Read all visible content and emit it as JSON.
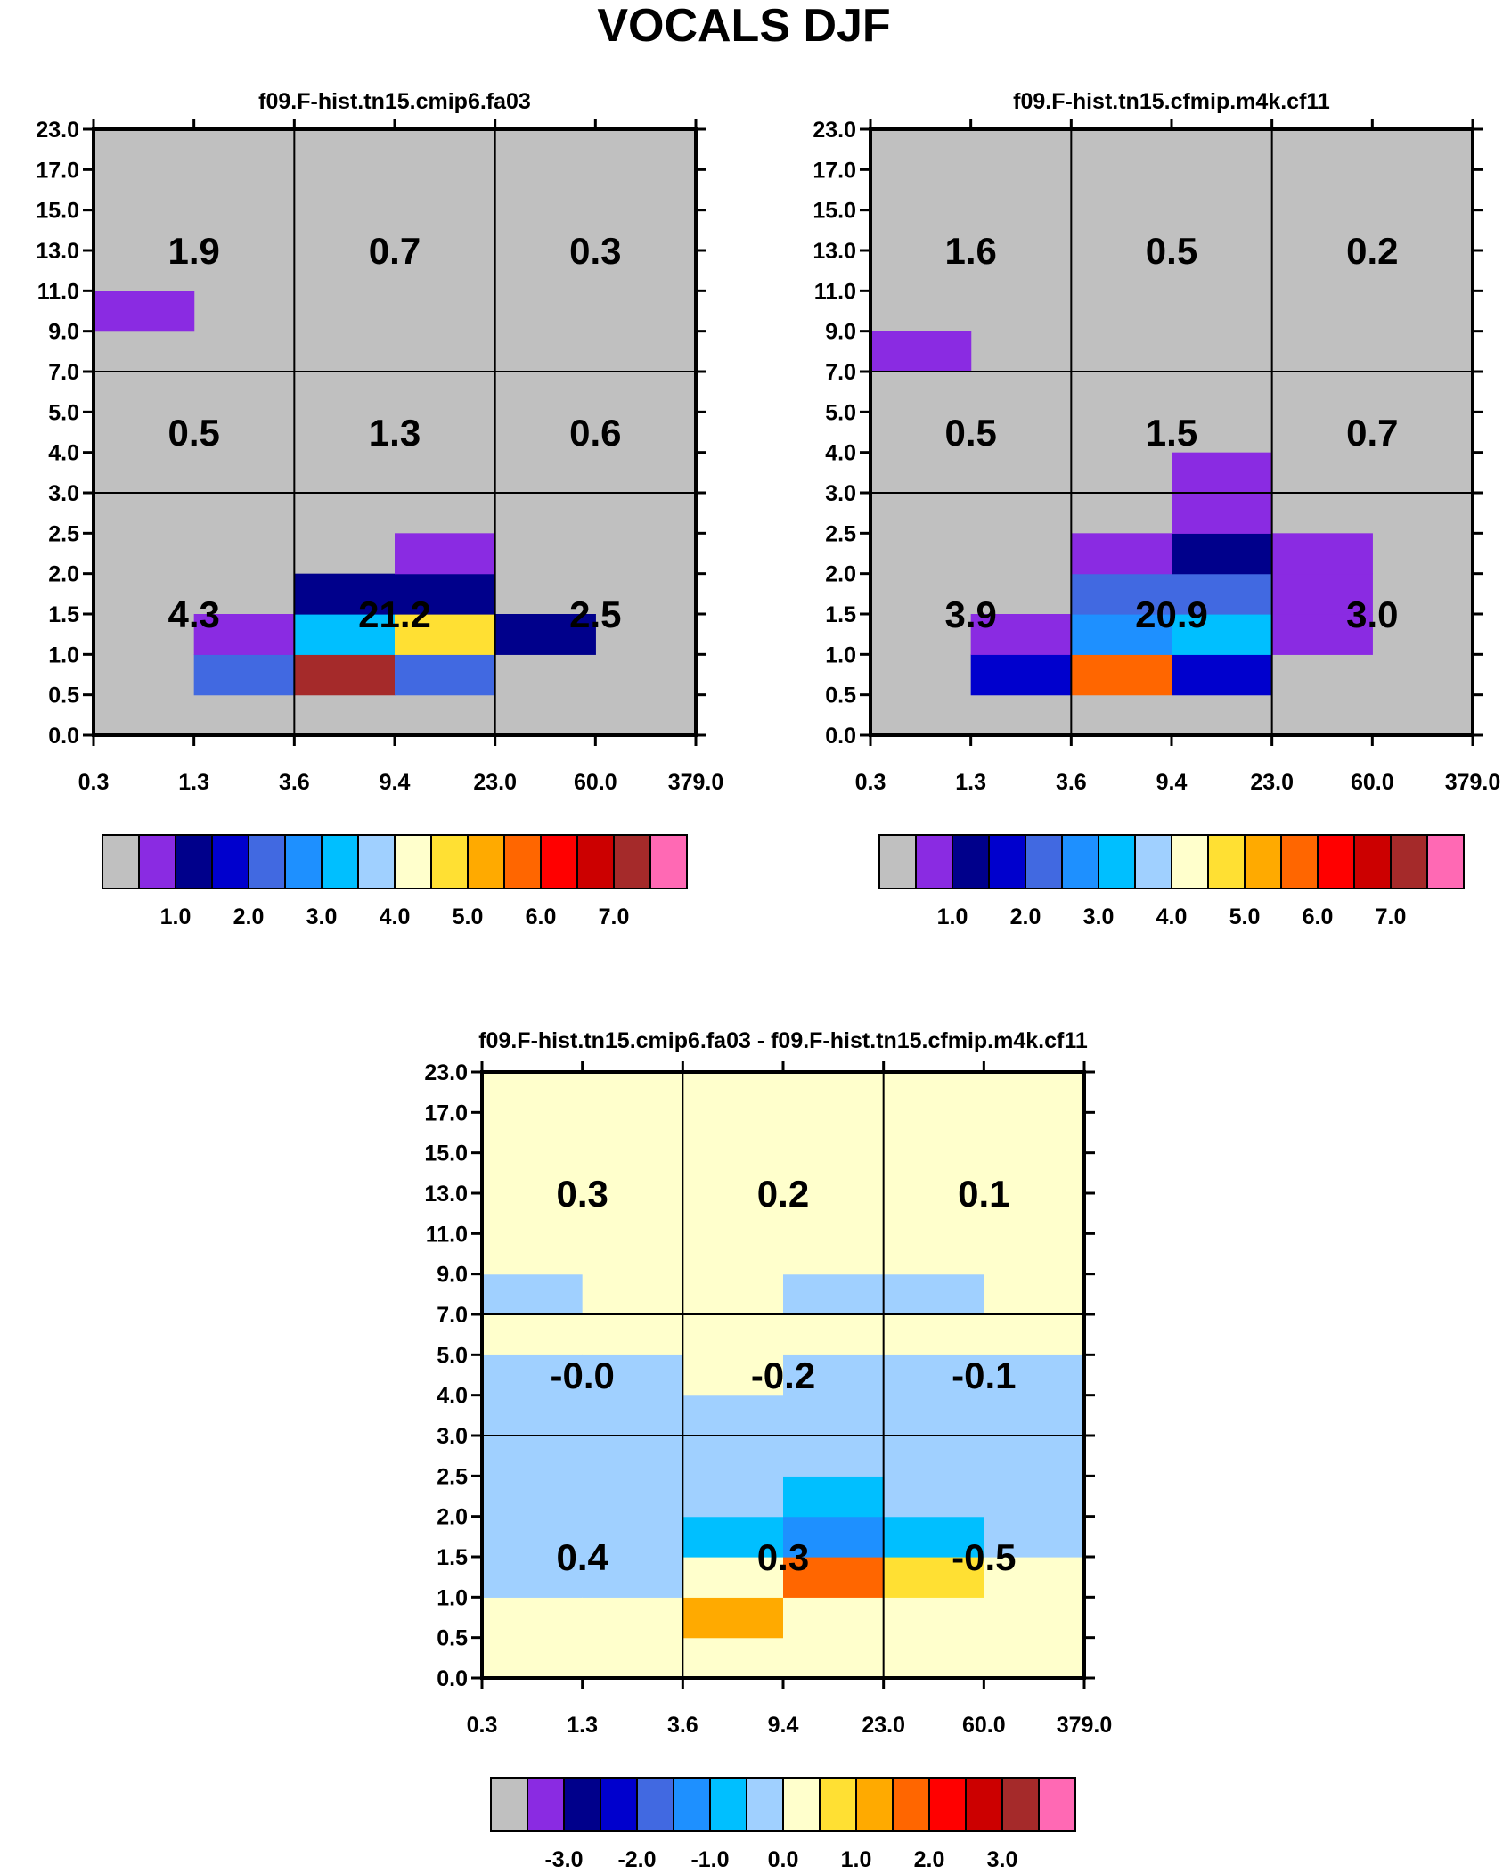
{
  "title": "VOCALS DJF",
  "chart_data": [
    {
      "type": "heatmap",
      "title": "f09.F-hist.tn15.cmip6.fa03",
      "x_ticks": [
        "0.3",
        "1.3",
        "3.6",
        "9.4",
        "23.0",
        "60.0",
        "379.0"
      ],
      "y_ticks": [
        "0.0",
        "0.5",
        "1.0",
        "1.5",
        "2.0",
        "2.5",
        "3.0",
        "4.0",
        "5.0",
        "7.0",
        "9.0",
        "11.0",
        "13.0",
        "15.0",
        "17.0",
        "23.0"
      ],
      "grid_lines": {
        "x": [
          2,
          4
        ],
        "y": [
          6,
          9
        ]
      },
      "region_values": [
        [
          "4.3",
          "21.2",
          "2.5"
        ],
        [
          "0.5",
          "1.3",
          "0.6"
        ],
        [
          "1.9",
          "0.7",
          "0.3"
        ]
      ],
      "colorbar": {
        "colors": [
          "#c0c0c0",
          "#8a2be2",
          "#00008b",
          "#0000cd",
          "#4169e1",
          "#1e90ff",
          "#00bfff",
          "#a0d0ff",
          "#ffffcc",
          "#ffe033",
          "#ffaa00",
          "#ff6600",
          "#ff0000",
          "#cc0000",
          "#a52a2a",
          "#ff69b4"
        ],
        "labels": [
          "1.0",
          "2.0",
          "3.0",
          "4.0",
          "5.0",
          "6.0",
          "7.0"
        ],
        "label_boxes": [
          2,
          4,
          6,
          8,
          10,
          12,
          14
        ]
      },
      "cells": [
        {
          "x": 0,
          "y": 10,
          "color": 1
        },
        {
          "x": 1,
          "y": 1,
          "color": 4
        },
        {
          "x": 1,
          "y": 2,
          "color": 1
        },
        {
          "x": 2,
          "y": 1,
          "color": 14
        },
        {
          "x": 2,
          "y": 2,
          "color": 6
        },
        {
          "x": 2,
          "y": 3,
          "color": 2
        },
        {
          "x": 3,
          "y": 1,
          "color": 4
        },
        {
          "x": 3,
          "y": 2,
          "color": 9
        },
        {
          "x": 3,
          "y": 3,
          "color": 2
        },
        {
          "x": 3,
          "y": 4,
          "color": 1
        },
        {
          "x": 4,
          "y": 2,
          "color": 2
        }
      ]
    },
    {
      "type": "heatmap",
      "title": "f09.F-hist.tn15.cfmip.m4k.cf11",
      "x_ticks": [
        "0.3",
        "1.3",
        "3.6",
        "9.4",
        "23.0",
        "60.0",
        "379.0"
      ],
      "y_ticks": [
        "0.0",
        "0.5",
        "1.0",
        "1.5",
        "2.0",
        "2.5",
        "3.0",
        "4.0",
        "5.0",
        "7.0",
        "9.0",
        "11.0",
        "13.0",
        "15.0",
        "17.0",
        "23.0"
      ],
      "grid_lines": {
        "x": [
          2,
          4
        ],
        "y": [
          6,
          9
        ]
      },
      "region_values": [
        [
          "3.9",
          "20.9",
          "3.0"
        ],
        [
          "0.5",
          "1.5",
          "0.7"
        ],
        [
          "1.6",
          "0.5",
          "0.2"
        ]
      ],
      "colorbar": {
        "colors": [
          "#c0c0c0",
          "#8a2be2",
          "#00008b",
          "#0000cd",
          "#4169e1",
          "#1e90ff",
          "#00bfff",
          "#a0d0ff",
          "#ffffcc",
          "#ffe033",
          "#ffaa00",
          "#ff6600",
          "#ff0000",
          "#cc0000",
          "#a52a2a",
          "#ff69b4"
        ],
        "labels": [
          "1.0",
          "2.0",
          "3.0",
          "4.0",
          "5.0",
          "6.0",
          "7.0"
        ],
        "label_boxes": [
          2,
          4,
          6,
          8,
          10,
          12,
          14
        ]
      },
      "cells": [
        {
          "x": 0,
          "y": 9,
          "color": 1
        },
        {
          "x": 1,
          "y": 1,
          "color": 3
        },
        {
          "x": 1,
          "y": 2,
          "color": 1
        },
        {
          "x": 2,
          "y": 1,
          "color": 11
        },
        {
          "x": 2,
          "y": 2,
          "color": 5
        },
        {
          "x": 2,
          "y": 3,
          "color": 4
        },
        {
          "x": 2,
          "y": 4,
          "color": 1
        },
        {
          "x": 3,
          "y": 1,
          "color": 3
        },
        {
          "x": 3,
          "y": 2,
          "color": 6
        },
        {
          "x": 3,
          "y": 3,
          "color": 4
        },
        {
          "x": 3,
          "y": 4,
          "color": 2
        },
        {
          "x": 3,
          "y": 5,
          "color": 1
        },
        {
          "x": 3,
          "y": 6,
          "color": 1
        },
        {
          "x": 4,
          "y": 2,
          "color": 1
        },
        {
          "x": 4,
          "y": 3,
          "color": 1
        },
        {
          "x": 4,
          "y": 4,
          "color": 1
        }
      ]
    },
    {
      "type": "heatmap",
      "title": "f09.F-hist.tn15.cmip6.fa03 - f09.F-hist.tn15.cfmip.m4k.cf11",
      "x_ticks": [
        "0.3",
        "1.3",
        "3.6",
        "9.4",
        "23.0",
        "60.0",
        "379.0"
      ],
      "y_ticks": [
        "0.0",
        "0.5",
        "1.0",
        "1.5",
        "2.0",
        "2.5",
        "3.0",
        "4.0",
        "5.0",
        "7.0",
        "9.0",
        "11.0",
        "13.0",
        "15.0",
        "17.0",
        "23.0"
      ],
      "grid_lines": {
        "x": [
          2,
          4
        ],
        "y": [
          6,
          9
        ]
      },
      "region_values": [
        [
          "0.4",
          "0.3",
          "-0.5"
        ],
        [
          "-0.0",
          "-0.2",
          "-0.1"
        ],
        [
          "0.3",
          "0.2",
          "0.1"
        ]
      ],
      "colorbar": {
        "colors": [
          "#c0c0c0",
          "#8a2be2",
          "#00008b",
          "#0000cd",
          "#4169e1",
          "#1e90ff",
          "#00bfff",
          "#a0d0ff",
          "#ffffcc",
          "#ffe033",
          "#ffaa00",
          "#ff6600",
          "#ff0000",
          "#cc0000",
          "#a52a2a",
          "#ff69b4"
        ],
        "labels": [
          "-3.0",
          "-2.0",
          "-1.0",
          "0.0",
          "1.0",
          "2.0",
          "3.0"
        ],
        "label_boxes": [
          2,
          4,
          6,
          8,
          10,
          12,
          14
        ]
      },
      "cells": [
        {
          "x": 0,
          "y": 0,
          "color": 8
        },
        {
          "x": 0,
          "y": 1,
          "color": 8
        },
        {
          "x": 0,
          "y": 2,
          "color": 7
        },
        {
          "x": 0,
          "y": 3,
          "color": 7
        },
        {
          "x": 0,
          "y": 4,
          "color": 7
        },
        {
          "x": 0,
          "y": 5,
          "color": 7
        },
        {
          "x": 0,
          "y": 6,
          "color": 7
        },
        {
          "x": 0,
          "y": 7,
          "color": 7
        },
        {
          "x": 0,
          "y": 8,
          "color": 8
        },
        {
          "x": 0,
          "y": 9,
          "color": 7
        },
        {
          "x": 0,
          "y": 10,
          "color": 8
        },
        {
          "x": 0,
          "y": 11,
          "color": 8
        },
        {
          "x": 0,
          "y": 12,
          "color": 8
        },
        {
          "x": 0,
          "y": 13,
          "color": 8
        },
        {
          "x": 0,
          "y": 14,
          "color": 8
        },
        {
          "x": 1,
          "y": 0,
          "color": 8
        },
        {
          "x": 1,
          "y": 1,
          "color": 8
        },
        {
          "x": 1,
          "y": 2,
          "color": 7
        },
        {
          "x": 1,
          "y": 3,
          "color": 7
        },
        {
          "x": 1,
          "y": 4,
          "color": 7
        },
        {
          "x": 1,
          "y": 5,
          "color": 7
        },
        {
          "x": 1,
          "y": 6,
          "color": 7
        },
        {
          "x": 1,
          "y": 7,
          "color": 7
        },
        {
          "x": 1,
          "y": 8,
          "color": 8
        },
        {
          "x": 1,
          "y": 9,
          "color": 8
        },
        {
          "x": 1,
          "y": 10,
          "color": 8
        },
        {
          "x": 1,
          "y": 11,
          "color": 8
        },
        {
          "x": 1,
          "y": 12,
          "color": 8
        },
        {
          "x": 1,
          "y": 13,
          "color": 8
        },
        {
          "x": 1,
          "y": 14,
          "color": 8
        },
        {
          "x": 2,
          "y": 0,
          "color": 8
        },
        {
          "x": 2,
          "y": 1,
          "color": 10
        },
        {
          "x": 2,
          "y": 2,
          "color": 8
        },
        {
          "x": 2,
          "y": 3,
          "color": 6
        },
        {
          "x": 2,
          "y": 4,
          "color": 7
        },
        {
          "x": 2,
          "y": 5,
          "color": 7
        },
        {
          "x": 2,
          "y": 6,
          "color": 7
        },
        {
          "x": 2,
          "y": 7,
          "color": 8
        },
        {
          "x": 2,
          "y": 8,
          "color": 8
        },
        {
          "x": 2,
          "y": 9,
          "color": 8
        },
        {
          "x": 2,
          "y": 10,
          "color": 8
        },
        {
          "x": 2,
          "y": 11,
          "color": 8
        },
        {
          "x": 2,
          "y": 12,
          "color": 8
        },
        {
          "x": 2,
          "y": 13,
          "color": 8
        },
        {
          "x": 2,
          "y": 14,
          "color": 8
        },
        {
          "x": 3,
          "y": 0,
          "color": 8
        },
        {
          "x": 3,
          "y": 1,
          "color": 8
        },
        {
          "x": 3,
          "y": 2,
          "color": 11
        },
        {
          "x": 3,
          "y": 3,
          "color": 5
        },
        {
          "x": 3,
          "y": 4,
          "color": 6
        },
        {
          "x": 3,
          "y": 5,
          "color": 7
        },
        {
          "x": 3,
          "y": 6,
          "color": 7
        },
        {
          "x": 3,
          "y": 7,
          "color": 7
        },
        {
          "x": 3,
          "y": 8,
          "color": 8
        },
        {
          "x": 3,
          "y": 9,
          "color": 7
        },
        {
          "x": 3,
          "y": 10,
          "color": 8
        },
        {
          "x": 3,
          "y": 11,
          "color": 8
        },
        {
          "x": 3,
          "y": 12,
          "color": 8
        },
        {
          "x": 3,
          "y": 13,
          "color": 8
        },
        {
          "x": 3,
          "y": 14,
          "color": 8
        },
        {
          "x": 4,
          "y": 0,
          "color": 8
        },
        {
          "x": 4,
          "y": 1,
          "color": 8
        },
        {
          "x": 4,
          "y": 2,
          "color": 9
        },
        {
          "x": 4,
          "y": 3,
          "color": 6
        },
        {
          "x": 4,
          "y": 4,
          "color": 7
        },
        {
          "x": 4,
          "y": 5,
          "color": 7
        },
        {
          "x": 4,
          "y": 6,
          "color": 7
        },
        {
          "x": 4,
          "y": 7,
          "color": 7
        },
        {
          "x": 4,
          "y": 8,
          "color": 8
        },
        {
          "x": 4,
          "y": 9,
          "color": 7
        },
        {
          "x": 4,
          "y": 10,
          "color": 8
        },
        {
          "x": 4,
          "y": 11,
          "color": 8
        },
        {
          "x": 4,
          "y": 12,
          "color": 8
        },
        {
          "x": 4,
          "y": 13,
          "color": 8
        },
        {
          "x": 4,
          "y": 14,
          "color": 8
        },
        {
          "x": 5,
          "y": 0,
          "color": 8
        },
        {
          "x": 5,
          "y": 1,
          "color": 8
        },
        {
          "x": 5,
          "y": 2,
          "color": 8
        },
        {
          "x": 5,
          "y": 3,
          "color": 7
        },
        {
          "x": 5,
          "y": 4,
          "color": 7
        },
        {
          "x": 5,
          "y": 5,
          "color": 7
        },
        {
          "x": 5,
          "y": 6,
          "color": 7
        },
        {
          "x": 5,
          "y": 7,
          "color": 7
        },
        {
          "x": 5,
          "y": 8,
          "color": 8
        },
        {
          "x": 5,
          "y": 9,
          "color": 8
        },
        {
          "x": 5,
          "y": 10,
          "color": 8
        },
        {
          "x": 5,
          "y": 11,
          "color": 8
        },
        {
          "x": 5,
          "y": 12,
          "color": 8
        },
        {
          "x": 5,
          "y": 13,
          "color": 8
        },
        {
          "x": 5,
          "y": 14,
          "color": 8
        }
      ]
    }
  ]
}
